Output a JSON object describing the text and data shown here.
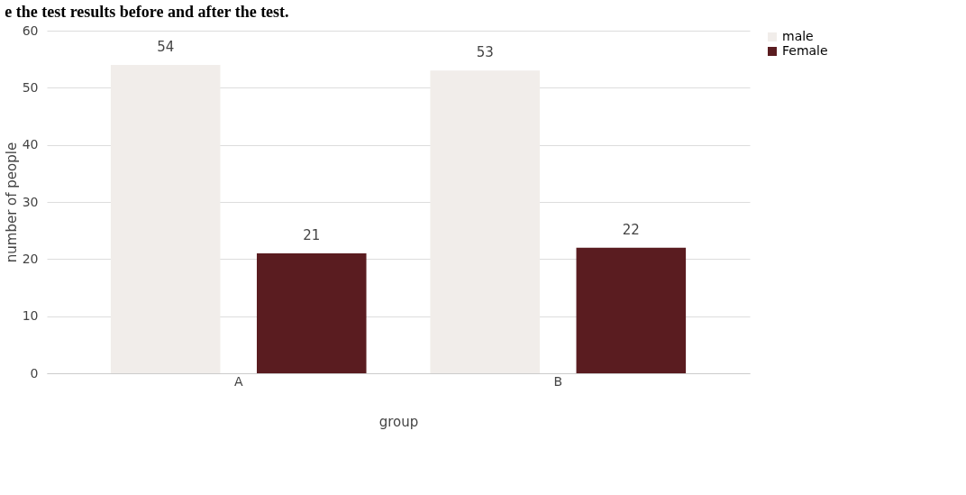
{
  "chart_data": {
    "type": "bar",
    "title": "e the test results before and after the test.",
    "xlabel": "group",
    "ylabel": "number of people",
    "categories": [
      "A",
      "B"
    ],
    "series": [
      {
        "name": "male",
        "color": "#f1edea",
        "values": [
          54,
          53
        ]
      },
      {
        "name": "Female",
        "color": "#5a1c20",
        "values": [
          21,
          22
        ]
      }
    ],
    "ylim": [
      0,
      60
    ],
    "yticks": [
      0,
      10,
      20,
      30,
      40,
      50,
      60
    ],
    "grid": "y",
    "legend": "right",
    "data_labels": true
  }
}
